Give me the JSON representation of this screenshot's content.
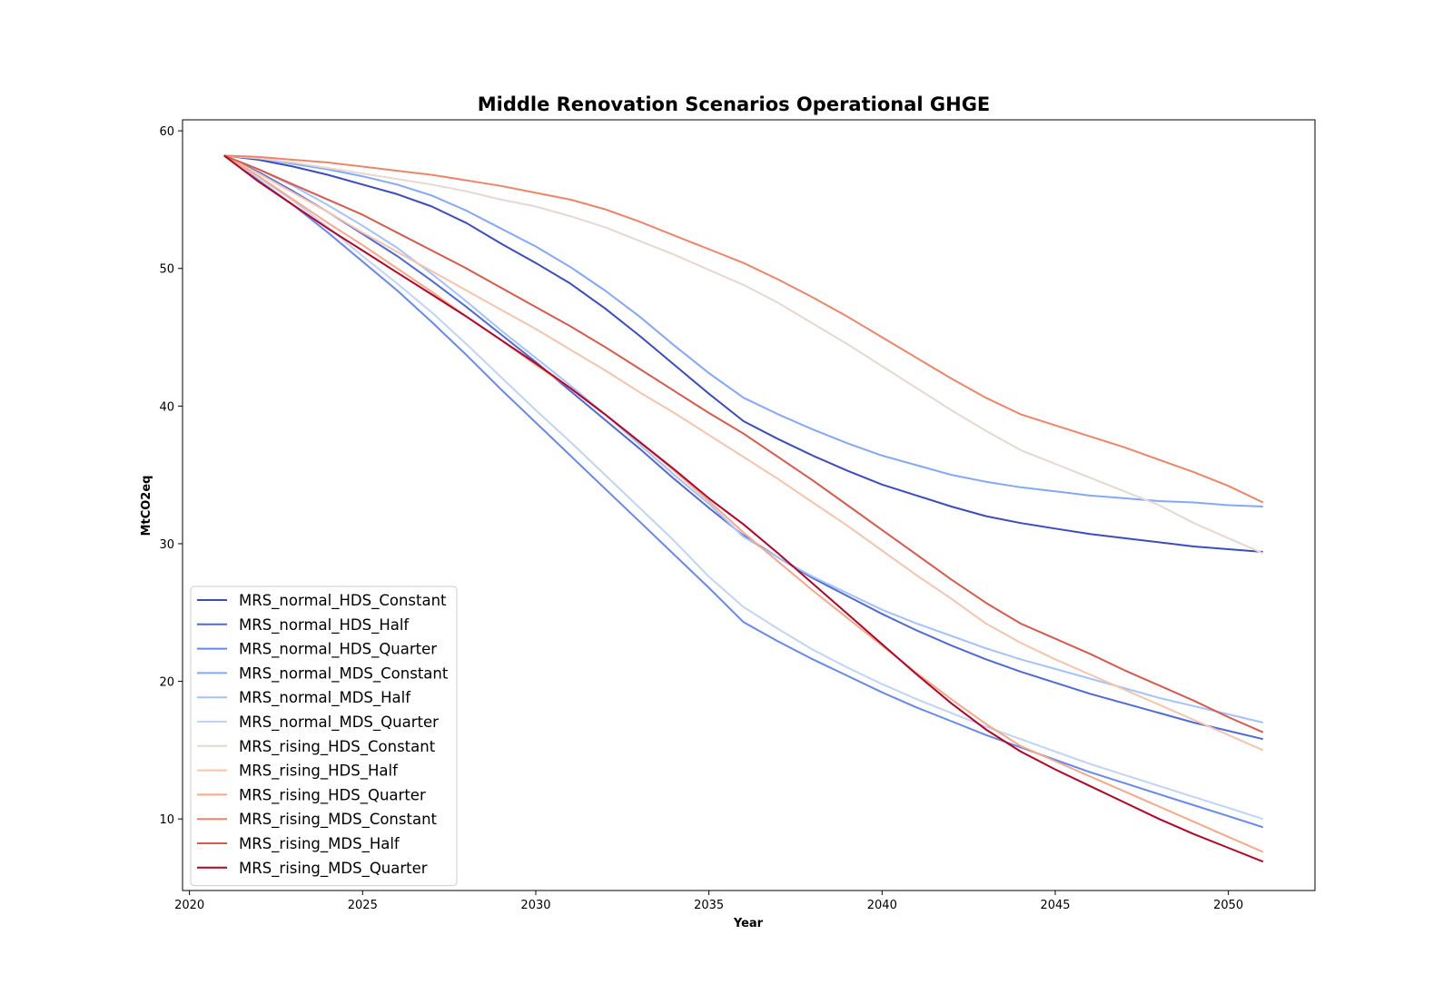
{
  "chart_data": {
    "type": "line",
    "title": "Middle Renovation Scenarios Operational GHGE",
    "xlabel": "Year",
    "ylabel": "MtCO2eq",
    "xlim": [
      2019.8,
      2052.5
    ],
    "ylim": [
      4.8,
      60.8
    ],
    "xticks": [
      2020,
      2025,
      2030,
      2035,
      2040,
      2045,
      2050
    ],
    "yticks": [
      10,
      20,
      30,
      40,
      50,
      60
    ],
    "grid": false,
    "legend_position": "lower-left",
    "x": [
      2021,
      2022,
      2023,
      2024,
      2025,
      2026,
      2027,
      2028,
      2029,
      2030,
      2031,
      2032,
      2033,
      2034,
      2035,
      2036,
      2037,
      2038,
      2039,
      2040,
      2041,
      2042,
      2043,
      2044,
      2045,
      2046,
      2047,
      2048,
      2049,
      2050,
      2051
    ],
    "series": [
      {
        "name": "MRS_normal_HDS_Constant",
        "color": "#3b4cc0",
        "values": [
          58.2,
          57.9,
          57.4,
          56.8,
          56.1,
          55.4,
          54.5,
          53.3,
          51.8,
          50.4,
          48.9,
          47.1,
          45.1,
          43.0,
          40.9,
          38.9,
          37.6,
          36.4,
          35.3,
          34.3,
          33.5,
          32.7,
          32.0,
          31.5,
          31.1,
          30.7,
          30.4,
          30.1,
          29.8,
          29.6,
          29.4
        ]
      },
      {
        "name": "MRS_normal_HDS_Half",
        "color": "#4f69d9",
        "values": [
          58.2,
          57.0,
          55.6,
          54.1,
          52.5,
          50.9,
          49.1,
          47.2,
          45.2,
          43.2,
          41.1,
          39.0,
          36.9,
          34.7,
          32.6,
          30.6,
          29.0,
          27.5,
          26.2,
          24.9,
          23.7,
          22.6,
          21.6,
          20.7,
          19.9,
          19.1,
          18.4,
          17.7,
          17.0,
          16.4,
          15.8
        ]
      },
      {
        "name": "MRS_normal_HDS_Quarter",
        "color": "#6788ee",
        "values": [
          58.2,
          56.4,
          54.6,
          52.6,
          50.5,
          48.4,
          46.1,
          43.7,
          41.2,
          38.8,
          36.4,
          34.0,
          31.6,
          29.2,
          26.8,
          24.3,
          22.9,
          21.6,
          20.4,
          19.2,
          18.1,
          17.1,
          16.1,
          15.2,
          14.3,
          13.4,
          12.6,
          11.8,
          11.0,
          10.2,
          9.4
        ]
      },
      {
        "name": "MRS_normal_MDS_Constant",
        "color": "#84a7fc",
        "values": [
          58.2,
          58.0,
          57.6,
          57.2,
          56.7,
          56.1,
          55.3,
          54.2,
          52.9,
          51.6,
          50.1,
          48.4,
          46.5,
          44.4,
          42.4,
          40.6,
          39.4,
          38.3,
          37.3,
          36.4,
          35.7,
          35.0,
          34.5,
          34.1,
          33.8,
          33.5,
          33.3,
          33.1,
          33.0,
          32.8,
          32.7
        ]
      },
      {
        "name": "MRS_normal_MDS_Half",
        "color": "#a3c2fe",
        "values": [
          58.2,
          57.2,
          56.0,
          54.6,
          53.1,
          51.5,
          49.6,
          47.6,
          45.5,
          43.5,
          41.5,
          39.4,
          37.2,
          35.0,
          32.9,
          30.5,
          29.0,
          27.6,
          26.4,
          25.2,
          24.2,
          23.3,
          22.4,
          21.6,
          20.9,
          20.2,
          19.5,
          18.8,
          18.2,
          17.6,
          17.0
        ]
      },
      {
        "name": "MRS_normal_MDS_Quarter",
        "color": "#c0d4f5",
        "values": [
          58.2,
          56.6,
          54.9,
          53.0,
          50.9,
          48.9,
          46.8,
          44.5,
          42.1,
          39.7,
          37.4,
          35.0,
          32.6,
          30.2,
          27.6,
          25.4,
          23.8,
          22.3,
          21.0,
          19.8,
          18.7,
          17.7,
          16.7,
          15.8,
          14.9,
          14.0,
          13.2,
          12.4,
          11.6,
          10.8,
          10.0
        ]
      },
      {
        "name": "MRS_rising_HDS_Constant",
        "color": "#e5d8d1",
        "values": [
          58.2,
          58.0,
          57.7,
          57.3,
          56.9,
          56.5,
          56.1,
          55.6,
          55.0,
          54.5,
          53.8,
          53.0,
          52.0,
          51.0,
          49.9,
          48.8,
          47.5,
          46.0,
          44.5,
          42.9,
          41.3,
          39.7,
          38.2,
          36.8,
          35.8,
          34.8,
          33.8,
          32.8,
          31.5,
          30.4,
          29.3
        ]
      },
      {
        "name": "MRS_rising_HDS_Half",
        "color": "#f5c4ac",
        "values": [
          58.2,
          56.9,
          55.5,
          54.1,
          52.6,
          51.2,
          49.8,
          48.4,
          47.0,
          45.6,
          44.1,
          42.6,
          41.0,
          39.5,
          37.9,
          36.3,
          34.7,
          33.0,
          31.3,
          29.5,
          27.7,
          26.0,
          24.2,
          22.8,
          21.6,
          20.5,
          19.4,
          18.3,
          17.2,
          16.1,
          15.0
        ]
      },
      {
        "name": "MRS_rising_HDS_Quarter",
        "color": "#f7a889",
        "values": [
          58.2,
          56.7,
          55.0,
          53.3,
          51.7,
          50.0,
          48.3,
          46.5,
          44.8,
          43.0,
          41.3,
          39.4,
          37.4,
          35.3,
          33.1,
          30.8,
          28.7,
          26.6,
          24.6,
          22.6,
          20.6,
          18.7,
          16.9,
          15.3,
          14.2,
          13.1,
          12.0,
          10.9,
          9.8,
          8.7,
          7.6
        ]
      },
      {
        "name": "MRS_rising_MDS_Constant",
        "color": "#ee8468",
        "values": [
          58.2,
          58.1,
          57.9,
          57.7,
          57.4,
          57.1,
          56.8,
          56.4,
          56.0,
          55.5,
          55.0,
          54.3,
          53.4,
          52.4,
          51.4,
          50.4,
          49.2,
          47.9,
          46.5,
          45.0,
          43.5,
          42.0,
          40.6,
          39.4,
          38.6,
          37.8,
          37.0,
          36.1,
          35.2,
          34.2,
          33.0
        ]
      },
      {
        "name": "MRS_rising_MDS_Half",
        "color": "#d85a4c",
        "values": [
          58.2,
          57.2,
          56.1,
          55.0,
          53.9,
          52.6,
          51.3,
          50.0,
          48.6,
          47.2,
          45.8,
          44.3,
          42.7,
          41.1,
          39.5,
          38.0,
          36.3,
          34.6,
          32.8,
          31.0,
          29.2,
          27.4,
          25.7,
          24.2,
          23.1,
          22.0,
          20.8,
          19.7,
          18.6,
          17.4,
          16.3
        ]
      },
      {
        "name": "MRS_rising_MDS_Quarter",
        "color": "#b40426",
        "values": [
          58.2,
          56.3,
          54.6,
          52.9,
          51.3,
          49.7,
          48.1,
          46.5,
          44.8,
          43.1,
          41.3,
          39.4,
          37.4,
          35.4,
          33.3,
          31.4,
          29.3,
          27.1,
          24.9,
          22.7,
          20.5,
          18.4,
          16.5,
          14.9,
          13.6,
          12.4,
          11.2,
          10.0,
          8.9,
          7.9,
          6.9
        ]
      }
    ]
  }
}
